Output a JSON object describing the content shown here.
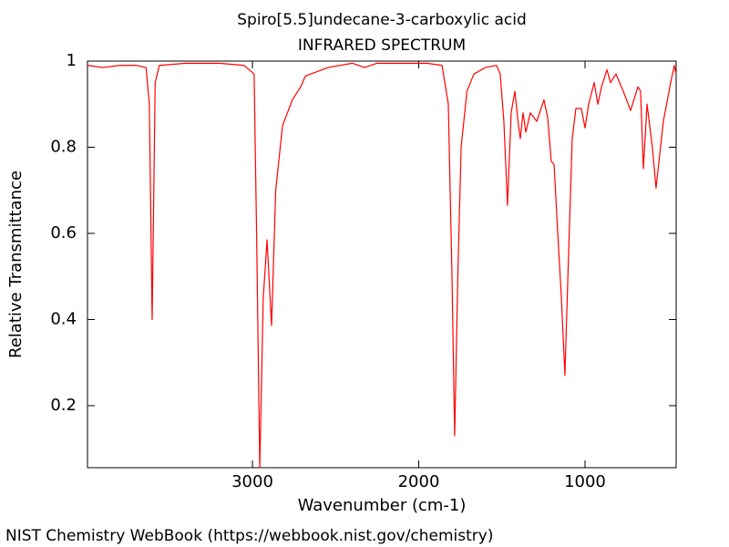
{
  "chart_data": {
    "type": "line",
    "title": "Spiro[5.5]undecane-3-carboxylic acid",
    "subtitle": "INFRARED SPECTRUM",
    "x_label": "Wavenumber (cm-1)",
    "y_label": "Relative Transmittance",
    "source": "NIST Chemistry WebBook (https://webbook.nist.gov/chemistry)",
    "x": [
      3990,
      3900,
      3800,
      3700,
      3640,
      3620,
      3603,
      3585,
      3560,
      3400,
      3200,
      3050,
      2990,
      2975,
      2956,
      2935,
      2912,
      2898,
      2885,
      2860,
      2819,
      2760,
      2710,
      2682,
      2650,
      2545,
      2400,
      2326,
      2250,
      2100,
      1950,
      1860,
      1822,
      1800,
      1784,
      1765,
      1745,
      1710,
      1668,
      1600,
      1532,
      1510,
      1488,
      1466,
      1444,
      1422,
      1400,
      1389,
      1373,
      1356,
      1329,
      1290,
      1247,
      1225,
      1203,
      1186,
      1164,
      1142,
      1121,
      1099,
      1077,
      1055,
      1022,
      1000,
      978,
      945,
      923,
      901,
      868,
      847,
      814,
      770,
      726,
      682,
      666,
      649,
      627,
      595,
      573,
      529,
      485,
      463,
      452
    ],
    "series": [
      {
        "name": "Spectrum",
        "color": "#ff0000",
        "values": [
          0.99,
          0.985,
          0.99,
          0.99,
          0.985,
          0.9,
          0.4,
          0.95,
          0.99,
          0.995,
          0.995,
          0.99,
          0.97,
          0.6,
          0.056,
          0.45,
          0.585,
          0.48,
          0.386,
          0.7,
          0.85,
          0.91,
          0.94,
          0.965,
          0.97,
          0.985,
          0.995,
          0.985,
          0.995,
          0.995,
          0.995,
          0.99,
          0.9,
          0.5,
          0.13,
          0.5,
          0.8,
          0.93,
          0.97,
          0.985,
          0.99,
          0.97,
          0.86,
          0.665,
          0.88,
          0.93,
          0.85,
          0.82,
          0.88,
          0.835,
          0.88,
          0.86,
          0.91,
          0.87,
          0.767,
          0.76,
          0.6,
          0.45,
          0.27,
          0.55,
          0.82,
          0.89,
          0.89,
          0.845,
          0.9,
          0.95,
          0.9,
          0.94,
          0.98,
          0.95,
          0.97,
          0.93,
          0.885,
          0.94,
          0.93,
          0.75,
          0.9,
          0.8,
          0.705,
          0.86,
          0.95,
          0.99,
          0.97
        ]
      }
    ],
    "xlim": [
      3992,
      452
    ],
    "ylim": [
      0.056,
      1
    ],
    "xticks": [
      3000,
      2000,
      1000
    ],
    "yticks": [
      0.2,
      0.4,
      0.6,
      0.8,
      1
    ]
  }
}
